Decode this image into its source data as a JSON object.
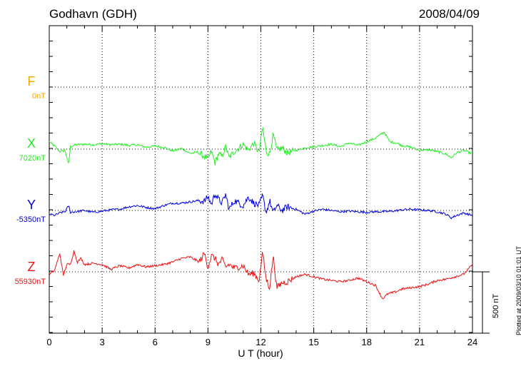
{
  "header": {
    "station": "Godhavn (GDH)",
    "date": "2008/04/09"
  },
  "footer": {
    "plotted": "Plotted at 2009/03/10 01:01 UT",
    "scale": "500 nT"
  },
  "chart_data": {
    "type": "line",
    "title": "Godhavn (GDH)",
    "xlabel": "U T (hour)",
    "ylabel": "",
    "xlim": [
      0,
      24
    ],
    "xticks": [
      "0",
      "3",
      "6",
      "9",
      "12",
      "15",
      "18",
      "21",
      "24"
    ],
    "grid": true,
    "scale_bar_nT": 500,
    "series": [
      {
        "name": "F",
        "baseline_label": "0nT",
        "color": "#f5a500",
        "points": []
      },
      {
        "name": "X",
        "baseline_label": "7020nT",
        "color": "#22ee22",
        "points": [
          [
            0,
            60
          ],
          [
            0.3,
            25
          ],
          [
            0.6,
            -20
          ],
          [
            0.9,
            -10
          ],
          [
            1.1,
            -130
          ],
          [
            1.2,
            20
          ],
          [
            1.5,
            35
          ],
          [
            2.0,
            40
          ],
          [
            2.5,
            35
          ],
          [
            3.0,
            45
          ],
          [
            3.5,
            35
          ],
          [
            4.0,
            40
          ],
          [
            4.5,
            30
          ],
          [
            5.0,
            35
          ],
          [
            5.5,
            15
          ],
          [
            6.0,
            25
          ],
          [
            6.5,
            15
          ],
          [
            7.0,
            -15
          ],
          [
            7.5,
            5
          ],
          [
            8.0,
            -35
          ],
          [
            8.4,
            -25
          ],
          [
            8.8,
            -60
          ],
          [
            9.0,
            -80
          ],
          [
            9.2,
            -20
          ],
          [
            9.4,
            -110
          ],
          [
            9.6,
            -40
          ],
          [
            9.8,
            -60
          ],
          [
            10.0,
            20
          ],
          [
            10.2,
            -70
          ],
          [
            10.5,
            -20
          ],
          [
            11.0,
            40
          ],
          [
            11.3,
            -10
          ],
          [
            11.6,
            50
          ],
          [
            11.9,
            -30
          ],
          [
            12.1,
            180
          ],
          [
            12.3,
            -20
          ],
          [
            12.5,
            -40
          ],
          [
            12.7,
            120
          ],
          [
            12.9,
            -10
          ],
          [
            13.2,
            10
          ],
          [
            13.5,
            -30
          ],
          [
            14.0,
            -10
          ],
          [
            14.5,
            10
          ],
          [
            15.0,
            20
          ],
          [
            15.5,
            30
          ],
          [
            16.0,
            40
          ],
          [
            16.5,
            20
          ],
          [
            17.0,
            50
          ],
          [
            17.5,
            30
          ],
          [
            18.0,
            60
          ],
          [
            18.5,
            90
          ],
          [
            19.0,
            140
          ],
          [
            19.3,
            60
          ],
          [
            19.7,
            50
          ],
          [
            20.0,
            30
          ],
          [
            20.5,
            15
          ],
          [
            21.0,
            -10
          ],
          [
            21.5,
            -5
          ],
          [
            22.0,
            -20
          ],
          [
            22.5,
            -40
          ],
          [
            22.8,
            -70
          ],
          [
            23.1,
            -30
          ],
          [
            23.5,
            -10
          ],
          [
            24.0,
            -40
          ]
        ]
      },
      {
        "name": "Y",
        "baseline_label": "-5350nT",
        "color": "#0000e0",
        "points": [
          [
            0,
            -30
          ],
          [
            0.3,
            -40
          ],
          [
            0.6,
            -20
          ],
          [
            0.9,
            -10
          ],
          [
            1.1,
            40
          ],
          [
            1.2,
            -15
          ],
          [
            1.5,
            -10
          ],
          [
            2.0,
            0
          ],
          [
            2.5,
            -15
          ],
          [
            3.0,
            -5
          ],
          [
            3.5,
            5
          ],
          [
            4.0,
            10
          ],
          [
            4.5,
            30
          ],
          [
            5.0,
            40
          ],
          [
            5.5,
            25
          ],
          [
            6.0,
            15
          ],
          [
            6.5,
            40
          ],
          [
            7.0,
            60
          ],
          [
            7.5,
            60
          ],
          [
            8.0,
            70
          ],
          [
            8.4,
            80
          ],
          [
            8.8,
            75
          ],
          [
            9.0,
            110
          ],
          [
            9.2,
            50
          ],
          [
            9.4,
            140
          ],
          [
            9.6,
            90
          ],
          [
            9.8,
            60
          ],
          [
            10.0,
            130
          ],
          [
            10.2,
            10
          ],
          [
            10.5,
            80
          ],
          [
            11.0,
            40
          ],
          [
            11.3,
            110
          ],
          [
            11.6,
            60
          ],
          [
            11.9,
            40
          ],
          [
            12.1,
            120
          ],
          [
            12.3,
            -20
          ],
          [
            12.5,
            80
          ],
          [
            12.7,
            -20
          ],
          [
            12.9,
            40
          ],
          [
            13.2,
            0
          ],
          [
            13.5,
            30
          ],
          [
            14.0,
            10
          ],
          [
            14.5,
            -30
          ],
          [
            15.0,
            -5
          ],
          [
            15.5,
            10
          ],
          [
            16.0,
            0
          ],
          [
            16.5,
            -10
          ],
          [
            17.0,
            -5
          ],
          [
            17.5,
            -10
          ],
          [
            18.0,
            -15
          ],
          [
            18.5,
            -10
          ],
          [
            19.0,
            -10
          ],
          [
            19.5,
            -5
          ],
          [
            20.0,
            5
          ],
          [
            20.5,
            10
          ],
          [
            21.0,
            5
          ],
          [
            21.5,
            0
          ],
          [
            22.0,
            -10
          ],
          [
            22.5,
            -30
          ],
          [
            22.8,
            -60
          ],
          [
            23.1,
            -40
          ],
          [
            23.5,
            -20
          ],
          [
            24.0,
            -40
          ]
        ]
      },
      {
        "name": "Z",
        "baseline_label": "55930nT",
        "color": "#ee1111",
        "points": [
          [
            0,
            -20
          ],
          [
            0.3,
            10
          ],
          [
            0.6,
            150
          ],
          [
            0.8,
            -30
          ],
          [
            1.0,
            60
          ],
          [
            1.2,
            60
          ],
          [
            1.4,
            170
          ],
          [
            1.6,
            80
          ],
          [
            1.8,
            110
          ],
          [
            2.0,
            60
          ],
          [
            2.5,
            70
          ],
          [
            3.0,
            60
          ],
          [
            3.5,
            20
          ],
          [
            4.0,
            50
          ],
          [
            4.5,
            30
          ],
          [
            5.0,
            60
          ],
          [
            5.5,
            40
          ],
          [
            6.0,
            50
          ],
          [
            6.5,
            60
          ],
          [
            7.0,
            80
          ],
          [
            7.5,
            110
          ],
          [
            8.0,
            120
          ],
          [
            8.5,
            80
          ],
          [
            8.8,
            150
          ],
          [
            9.0,
            40
          ],
          [
            9.2,
            130
          ],
          [
            9.4,
            110
          ],
          [
            9.6,
            60
          ],
          [
            9.8,
            100
          ],
          [
            10.0,
            40
          ],
          [
            10.2,
            60
          ],
          [
            10.5,
            30
          ],
          [
            11.0,
            50
          ],
          [
            11.3,
            -20
          ],
          [
            11.6,
            -10
          ],
          [
            11.9,
            -70
          ],
          [
            12.1,
            160
          ],
          [
            12.3,
            -60
          ],
          [
            12.5,
            -130
          ],
          [
            12.7,
            130
          ],
          [
            12.9,
            -130
          ],
          [
            13.2,
            -90
          ],
          [
            13.5,
            -80
          ],
          [
            14.0,
            -40
          ],
          [
            14.5,
            -20
          ],
          [
            15.0,
            -40
          ],
          [
            15.5,
            -60
          ],
          [
            16.0,
            -70
          ],
          [
            16.5,
            -80
          ],
          [
            17.0,
            -70
          ],
          [
            17.5,
            -50
          ],
          [
            18.0,
            -80
          ],
          [
            18.5,
            -110
          ],
          [
            18.9,
            -220
          ],
          [
            19.2,
            -180
          ],
          [
            19.7,
            -160
          ],
          [
            20.0,
            -140
          ],
          [
            20.5,
            -130
          ],
          [
            21.0,
            -120
          ],
          [
            21.5,
            -100
          ],
          [
            22.0,
            -70
          ],
          [
            22.5,
            -60
          ],
          [
            23.0,
            -40
          ],
          [
            23.5,
            -20
          ],
          [
            24.0,
            60
          ]
        ]
      }
    ]
  }
}
